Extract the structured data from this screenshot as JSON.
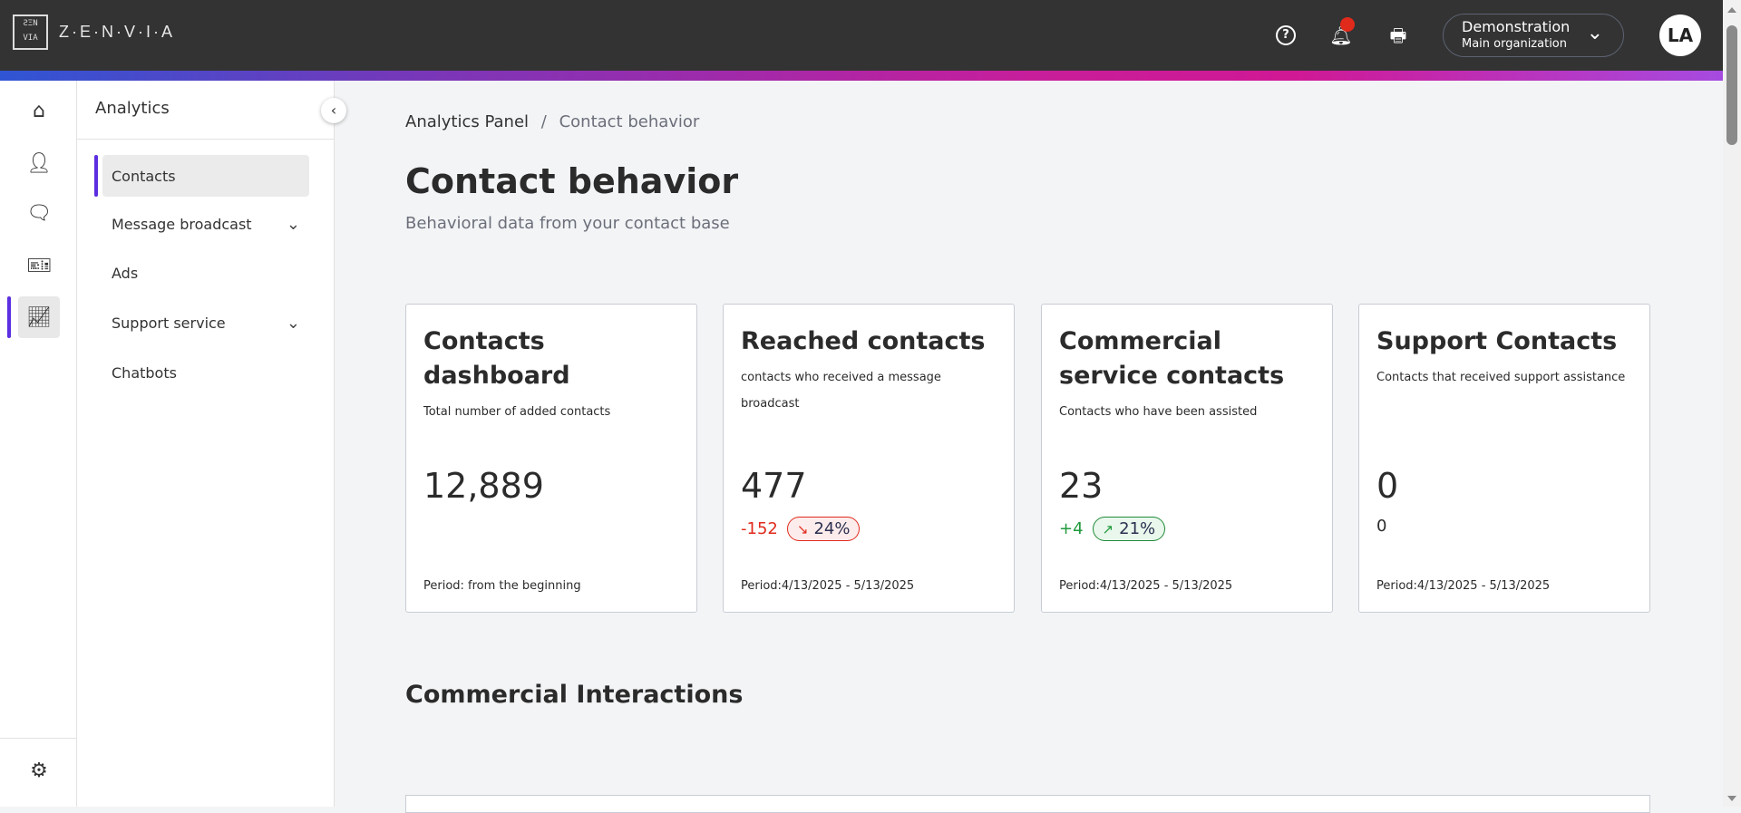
{
  "header": {
    "logo_text": "Z·E·N·V·I·A",
    "org_name": "Demonstration",
    "org_sub": "Main organization",
    "avatar": "LA",
    "icons": [
      "help-icon",
      "bell-icon",
      "printer-icon",
      "chevron-down-icon"
    ],
    "notification_color": "#e02a1c"
  },
  "rail": {
    "items": [
      "home-icon",
      "user-icon",
      "chat-icon",
      "ticket-icon",
      "chart-icon"
    ],
    "active": "chart-icon",
    "settings": "gear-icon"
  },
  "sidebar": {
    "title": "Analytics",
    "items": [
      {
        "label": "Contacts",
        "active": true
      },
      {
        "label": "Message broadcast",
        "expandable": true
      },
      {
        "label": "Ads"
      },
      {
        "label": "Support service",
        "expandable": true
      },
      {
        "label": "Chatbots"
      }
    ]
  },
  "breadcrumb": {
    "parent": "Analytics Panel",
    "sep": "/",
    "current": "Contact behavior"
  },
  "page": {
    "title": "Contact behavior",
    "subtitle": "Behavioral data from your contact base"
  },
  "cards": [
    {
      "title": "Contacts dashboard",
      "desc": "Total number of added contacts",
      "value": "12,889",
      "period": "Period: from the beginning"
    },
    {
      "title": "Reached contacts",
      "desc": "contacts who received a message broadcast",
      "value": "477",
      "delta": "-152",
      "pct": "24%",
      "trend": "down",
      "period": "Period:4/13/2025 - 5/13/2025"
    },
    {
      "title": "Commercial service contacts",
      "desc": "Contacts who have been assisted",
      "value": "23",
      "delta": "+4",
      "pct": "21%",
      "trend": "up",
      "period": "Period:4/13/2025 - 5/13/2025"
    },
    {
      "title": "Support Contacts",
      "desc": "Contacts that received support assistance",
      "value": "0",
      "delta": "0",
      "period": "Period:4/13/2025 - 5/13/2025"
    }
  ],
  "section": {
    "title": "Commercial Interactions"
  },
  "colors": {
    "accent": "#5b2ee0",
    "negative": "#e02a1c",
    "positive": "#1f9a3c"
  }
}
